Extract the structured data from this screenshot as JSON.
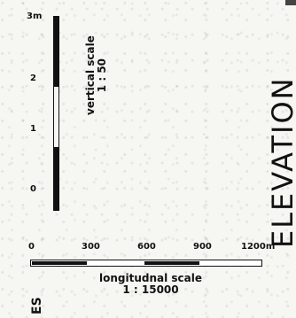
{
  "vertical_scale": {
    "ticks": [
      "3m",
      "2",
      "1",
      "0"
    ],
    "label": "vertical scale",
    "ratio": "1 : 50"
  },
  "longitudinal_scale": {
    "ticks": [
      "0",
      "300",
      "600",
      "900",
      "1200m"
    ],
    "label": "longitudnal scale",
    "ratio": "1 : 15000"
  },
  "title": "ELEVATION",
  "corner_text": "ES"
}
